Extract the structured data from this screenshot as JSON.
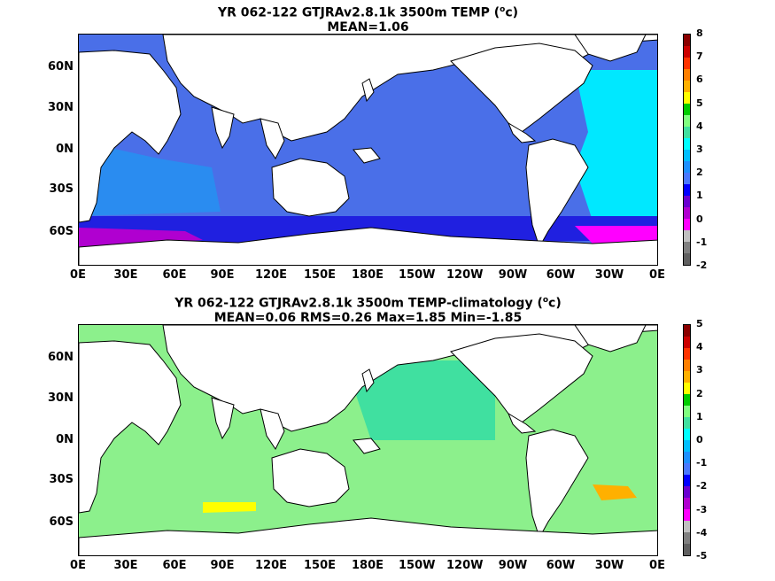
{
  "panels": [
    {
      "title_line1": "YR 062-122 GTJRAv2.8.1k 3500m TEMP (",
      "title_unit": "o",
      "title_line1_end": "c)",
      "title_line2": "MEAN=1.06",
      "colorbar_ticks": [
        "8",
        "7",
        "6",
        "5",
        "4",
        "3",
        "2",
        "1",
        "0",
        "-1",
        "-2"
      ],
      "colorbar_colors": [
        "#8b0000",
        "#cc0000",
        "#ff3300",
        "#ff7f00",
        "#ffb000",
        "#ffff00",
        "#00cc00",
        "#80ff80",
        "#40e0a0",
        "#00ffff",
        "#00bfff",
        "#1e90ff",
        "#4a78ff",
        "#0000ff",
        "#6a00d0",
        "#b000d0",
        "#ff00ff",
        "#c0c0c0",
        "#808080",
        "#606060"
      ],
      "field_color": "#4a6fe8"
    },
    {
      "title_line1": "YR 062-122 GTJRAv2.8.1k 3500m TEMP-climatology (",
      "title_unit": "o",
      "title_line1_end": "c)",
      "title_line2": "MEAN=0.06   RMS=0.26   Max=1.85   Min=-1.85",
      "colorbar_ticks": [
        "5",
        "4",
        "3",
        "2",
        "1",
        "0",
        "-1",
        "-2",
        "-3",
        "-4",
        "-5"
      ],
      "colorbar_colors": [
        "#8b0000",
        "#cc0000",
        "#ff3300",
        "#ff7f00",
        "#ffb000",
        "#ffff00",
        "#00cc00",
        "#80ff80",
        "#40e0a0",
        "#00ffff",
        "#00bfff",
        "#1e90ff",
        "#4a78ff",
        "#0000ff",
        "#6a00d0",
        "#b000d0",
        "#ff00ff",
        "#c0c0c0",
        "#808080",
        "#606060"
      ],
      "field_color": "#8cf08c"
    }
  ],
  "lat_ticks": [
    "60N",
    "30N",
    "0N",
    "30S",
    "60S"
  ],
  "lon_ticks": [
    "0E",
    "30E",
    "60E",
    "90E",
    "120E",
    "150E",
    "180E",
    "150W",
    "120W",
    "90W",
    "60W",
    "30W",
    "0E"
  ]
}
